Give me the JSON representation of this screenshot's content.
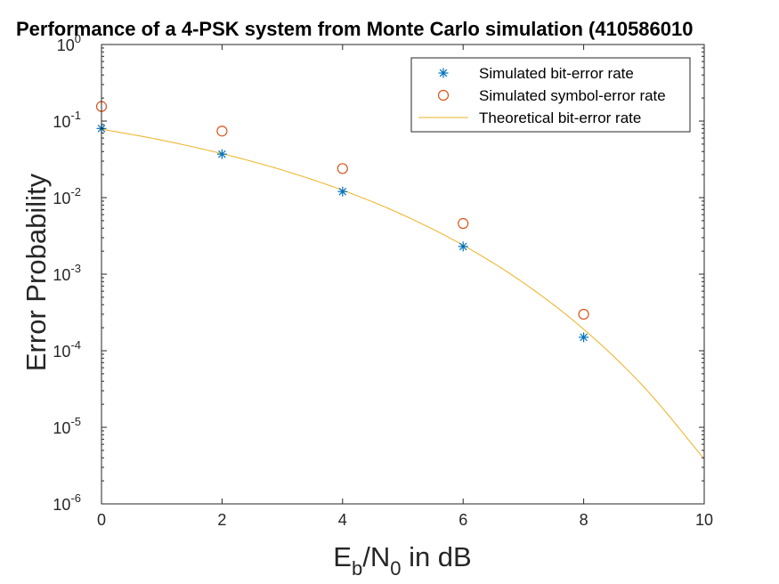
{
  "chart_data": {
    "type": "scatter",
    "title": "Performance of a 4-PSK system from Monte Carlo simulation (410586010",
    "xlabel": {
      "base": "E",
      "sub1": "b",
      "mid": "/N",
      "sub2": "0",
      "tail": " in dB"
    },
    "ylabel": "Error Probability",
    "xlim": [
      0,
      10
    ],
    "ylim": [
      1e-06,
      1
    ],
    "yscale": "log",
    "x_ticks": [
      "0",
      "2",
      "4",
      "6",
      "8",
      "10"
    ],
    "y_ticks": [
      {
        "base": "10",
        "exp": "0"
      },
      {
        "base": "10",
        "exp": "-1"
      },
      {
        "base": "10",
        "exp": "-2"
      },
      {
        "base": "10",
        "exp": "-3"
      },
      {
        "base": "10",
        "exp": "-4"
      },
      {
        "base": "10",
        "exp": "-5"
      },
      {
        "base": "10",
        "exp": "-6"
      }
    ],
    "grid": false,
    "legend_position": "top-right",
    "series": [
      {
        "name": "Simulated bit-error rate",
        "marker": "asterisk",
        "color": "#0072BD",
        "x": [
          0,
          2,
          4,
          6,
          8
        ],
        "y": [
          0.08,
          0.037,
          0.012,
          0.0023,
          0.00015
        ]
      },
      {
        "name": "Simulated symbol-error rate",
        "marker": "circle",
        "color": "#D95319",
        "x": [
          0,
          2,
          4,
          6,
          8
        ],
        "y": [
          0.155,
          0.074,
          0.024,
          0.0046,
          0.0003
        ]
      },
      {
        "name": "Theoretical bit-error rate",
        "marker": "line",
        "color": "#EDB120",
        "x": [
          0,
          1,
          2,
          3,
          4,
          5,
          6,
          7,
          8,
          9,
          10
        ],
        "y": [
          0.0786,
          0.0563,
          0.0375,
          0.0229,
          0.0125,
          0.00595,
          0.00239,
          0.000773,
          0.000191,
          3.36e-05,
          3.87e-06
        ]
      }
    ]
  }
}
